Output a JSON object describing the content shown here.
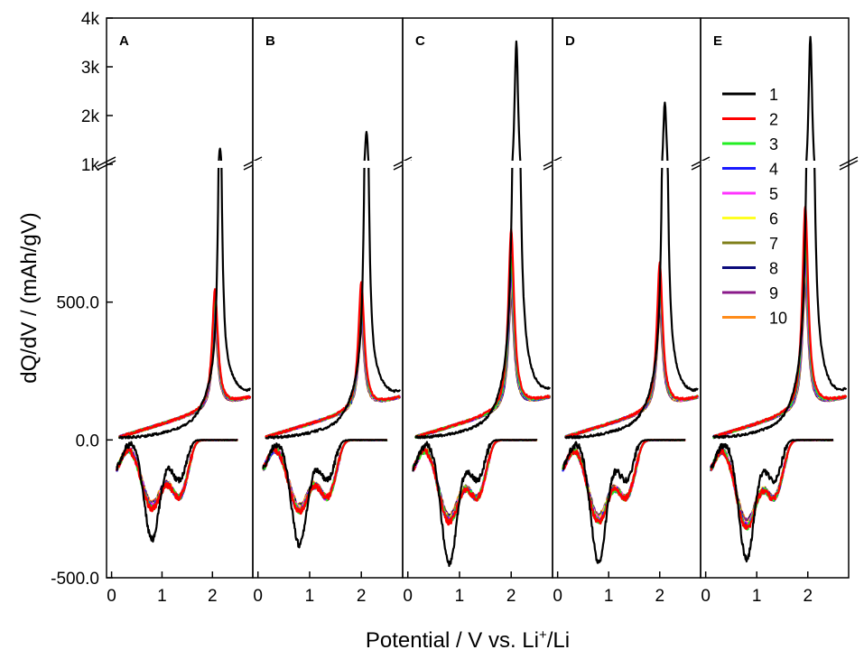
{
  "chart_data": {
    "type": "line",
    "panels": [
      {
        "label": "A",
        "x_range": [
          -0.1,
          2.8
        ],
        "charge_peak": 1100,
        "charge_peak_x": 2.15,
        "charge_peak_others": [
          430,
          400,
          370,
          350,
          335,
          320,
          310,
          300,
          290
        ],
        "discharge_min": -360,
        "discharge_min_others": -250
      },
      {
        "label": "B",
        "x_range": [
          -0.1,
          2.8
        ],
        "charge_peak": 1450,
        "charge_peak_x": 2.1,
        "charge_peak_others": [
          460,
          420,
          380,
          360,
          345,
          330,
          320,
          310,
          300
        ],
        "discharge_min": -380,
        "discharge_min_others": -260
      },
      {
        "label": "C",
        "x_range": [
          -0.1,
          2.8
        ],
        "charge_peak": 3300,
        "charge_peak_x": 2.1,
        "charge_peak_others": [
          650,
          550,
          500,
          480,
          460,
          440,
          420,
          410,
          400
        ],
        "discharge_min": -450,
        "discharge_min_others": -300
      },
      {
        "label": "D",
        "x_range": [
          -0.1,
          2.8
        ],
        "charge_peak": 2050,
        "charge_peak_x": 2.1,
        "charge_peak_others": [
          530,
          480,
          440,
          420,
          400,
          385,
          370,
          355,
          340
        ],
        "discharge_min": -440,
        "discharge_min_others": -300
      },
      {
        "label": "E",
        "x_range": [
          -0.1,
          2.8
        ],
        "charge_peak": 3400,
        "charge_peak_x": 2.05,
        "charge_peak_others": [
          740,
          640,
          580,
          540,
          520,
          500,
          480,
          465,
          450
        ],
        "discharge_min": -430,
        "discharge_min_others": -320
      }
    ],
    "x_ticks": [
      "0",
      "1",
      "2"
    ],
    "x_tick_values": [
      0,
      1,
      2
    ],
    "y_ticks_lower": [
      "-500.0",
      "0.0",
      "500.0"
    ],
    "y_tick_values_lower": [
      -500,
      0,
      500
    ],
    "y_lower_range": [
      -500,
      1000
    ],
    "y_ticks_upper": [
      "1k",
      "2k",
      "3k",
      "4k"
    ],
    "y_tick_values_upper": [
      1000,
      2000,
      3000,
      4000
    ],
    "y_upper_range": [
      1000,
      4000
    ],
    "xlabel_parts": [
      "Potential / V vs. Li",
      "+",
      "/Li"
    ],
    "ylabel": "dQ/dV  / (mAh/gV)",
    "legend_position": "top-right (panel E)",
    "series": [
      {
        "name": "1",
        "color": "#000000"
      },
      {
        "name": "2",
        "color": "#ff0000"
      },
      {
        "name": "3",
        "color": "#22ee22"
      },
      {
        "name": "4",
        "color": "#1a1aff"
      },
      {
        "name": "5",
        "color": "#ff33ff"
      },
      {
        "name": "6",
        "color": "#ffff22"
      },
      {
        "name": "7",
        "color": "#7f7f1a"
      },
      {
        "name": "8",
        "color": "#0a0a7a"
      },
      {
        "name": "9",
        "color": "#8a1a8a"
      },
      {
        "name": "10",
        "color": "#ff8c1a"
      }
    ]
  }
}
